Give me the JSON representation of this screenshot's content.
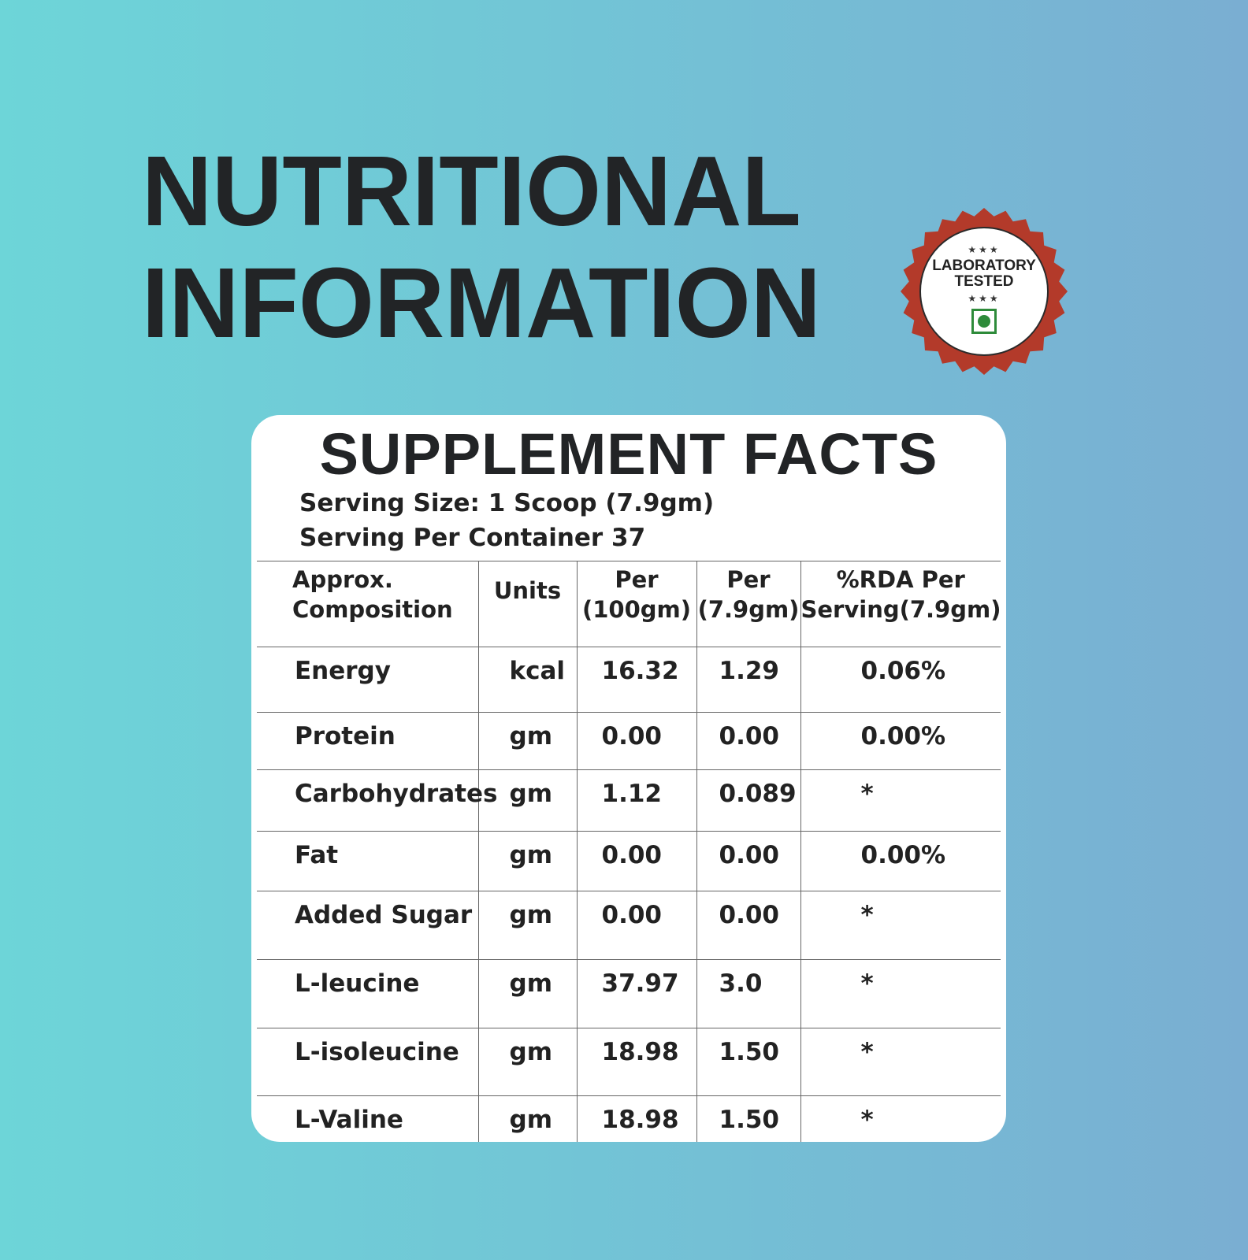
{
  "headline": {
    "line1": "NUTRITIONAL",
    "line2": "INFORMATION"
  },
  "badge": {
    "stars": "★★★",
    "line1": "LABORATORY",
    "line2": "TESTED",
    "color": "#b33a2a",
    "icon": "veg-mark-icon"
  },
  "card": {
    "title": "SUPPLEMENT FACTS",
    "serving_size": "Serving Size: 1 Scoop (7.9gm)",
    "servings_per_container": "Serving Per Container 37"
  },
  "table": {
    "headers": {
      "composition": [
        "Approx.",
        "Composition"
      ],
      "units": "Units",
      "per_100": [
        "Per",
        "(100gm)"
      ],
      "per_serving": [
        "Per",
        "(7.9gm)"
      ],
      "rda": [
        "%RDA Per",
        "Serving(7.9gm)"
      ]
    },
    "rows": [
      {
        "name": "Energy",
        "unit": "kcal",
        "per100": "16.32",
        "perServing": "1.29",
        "rda": "0.06%"
      },
      {
        "name": "Protein",
        "unit": "gm",
        "per100": "0.00",
        "perServing": "0.00",
        "rda": "0.00%"
      },
      {
        "name": "Carbohydrates",
        "unit": "gm",
        "per100": "1.12",
        "perServing": "0.089",
        "rda": "*"
      },
      {
        "name": "Fat",
        "unit": "gm",
        "per100": "0.00",
        "perServing": "0.00",
        "rda": "0.00%"
      },
      {
        "name": "Added Sugar",
        "unit": "gm",
        "per100": "0.00",
        "perServing": "0.00",
        "rda": "*"
      },
      {
        "name": "L-leucine",
        "unit": "gm",
        "per100": "37.97",
        "perServing": "3.0",
        "rda": "*"
      },
      {
        "name": "L-isoleucine",
        "unit": "gm",
        "per100": "18.98",
        "perServing": "1.50",
        "rda": "*"
      },
      {
        "name": "L-Valine",
        "unit": "gm",
        "per100": "18.98",
        "perServing": "1.50",
        "rda": "*"
      }
    ]
  }
}
